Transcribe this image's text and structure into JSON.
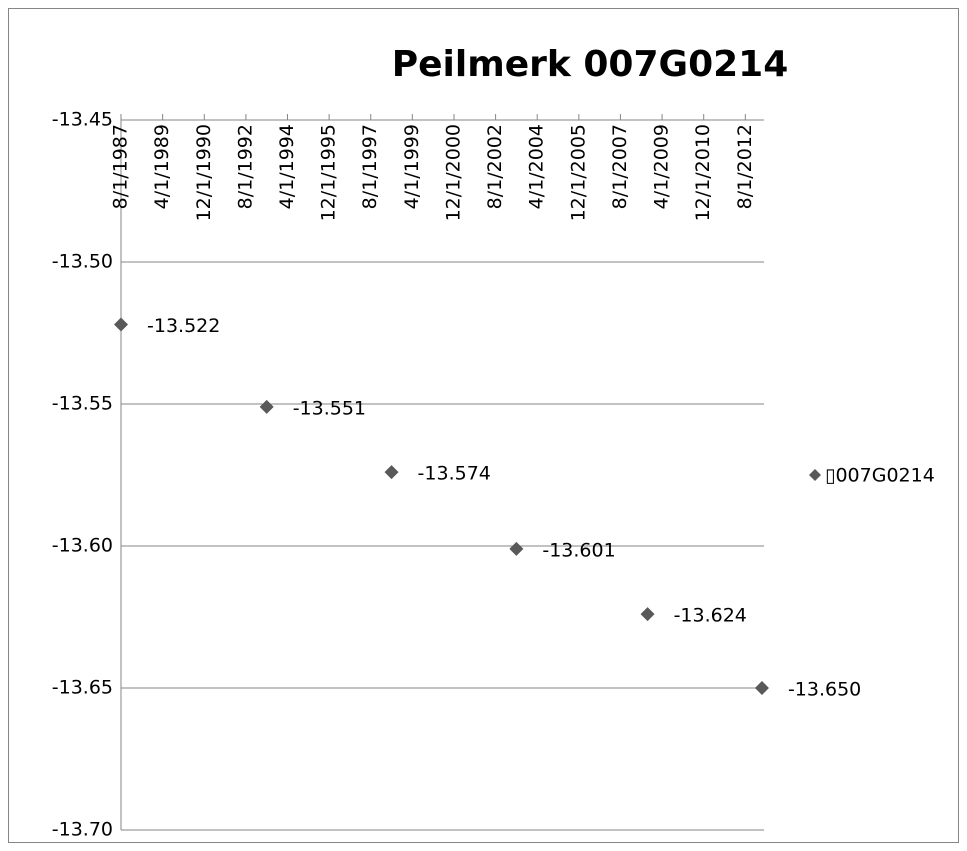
{
  "chart_data": {
    "type": "scatter",
    "title": "Peilmerk 007G0214",
    "series": [
      {
        "name": "▯007G0214",
        "color": "#595959",
        "x": [
          "8/1/1987",
          "6/1/1993",
          "6/1/1998",
          "6/1/2003",
          "9/1/2008",
          "4/1/2013"
        ],
        "values": [
          -13.522,
          -13.551,
          -13.574,
          -13.601,
          -13.624,
          -13.65
        ],
        "value_labels": [
          "-13.522",
          "-13.551",
          "-13.574",
          "-13.601",
          "-13.624",
          "-13.650"
        ]
      }
    ],
    "xlim": [
      "8/1/1987",
      "5/1/2013"
    ],
    "xticks": [
      "8/1/1987",
      "4/1/1989",
      "12/1/1990",
      "8/1/1992",
      "4/1/1994",
      "12/1/1995",
      "8/1/1997",
      "4/1/1999",
      "12/1/2000",
      "8/1/2002",
      "4/1/2004",
      "12/1/2005",
      "8/1/2007",
      "4/1/2009",
      "12/1/2010",
      "8/1/2012"
    ],
    "ylim": [
      -13.7,
      -13.45
    ],
    "yticks": [
      -13.45,
      {
        "value": -13.5,
        "label": "-13.50"
      },
      -13.55,
      {
        "value": -13.6,
        "label": "-13.60"
      },
      -13.65,
      {
        "value": -13.7,
        "label": "-13.70"
      }
    ],
    "grid": true,
    "legend": "right"
  }
}
